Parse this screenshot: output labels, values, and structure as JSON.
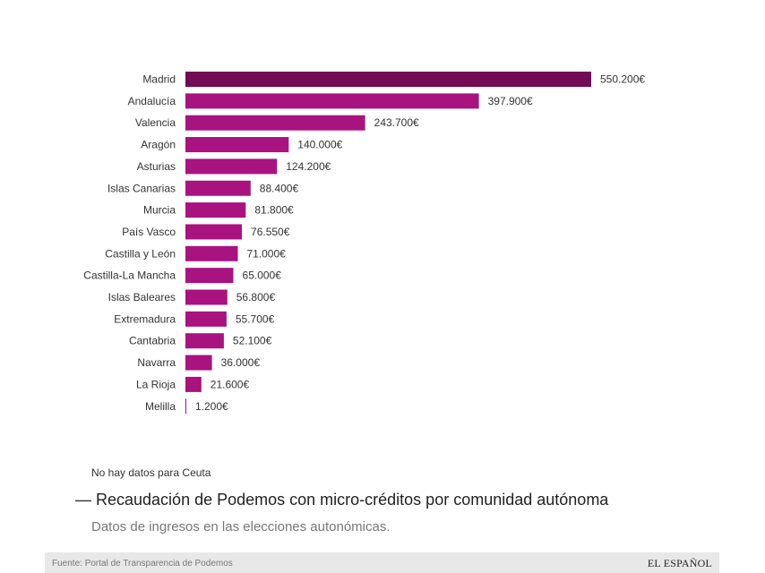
{
  "chart_data": {
    "type": "bar",
    "orientation": "horizontal",
    "categories": [
      "Madrid",
      "Andalucía",
      "Valencia",
      "Aragón",
      "Asturias",
      "Islas Canarias",
      "Murcia",
      "País Vasco",
      "Castilla y León",
      "Castilla-La Mancha",
      "Islas Baleares",
      "Extremadura",
      "Cantabria",
      "Navarra",
      "La Rioja",
      "Melilla"
    ],
    "values": [
      550200,
      397900,
      243700,
      140000,
      124200,
      88400,
      81800,
      76550,
      71000,
      65000,
      56800,
      55700,
      52100,
      36000,
      21600,
      1200
    ],
    "value_labels": [
      "550.200€",
      "397.900€",
      "243.700€",
      "140.000€",
      "124.200€",
      "88.400€",
      "81.800€",
      "76.550€",
      "71.000€",
      "65.000€",
      "56.800€",
      "55.700€",
      "52.100€",
      "36.000€",
      "21.600€",
      "1.200€"
    ],
    "xlim": [
      0,
      550200
    ],
    "grid": false,
    "colors": {
      "highlight": "#720a56",
      "bar": "#a8137f"
    }
  },
  "note": "No hay datos para Ceuta",
  "title": "— Recaudación de Podemos con micro-créditos por comunidad autónoma",
  "subtitle": "Datos de ingresos en las elecciones autonómicas.",
  "source": "Fuente: Portal de Transparencia de Podemos",
  "brand": "EL ESPAÑOL"
}
